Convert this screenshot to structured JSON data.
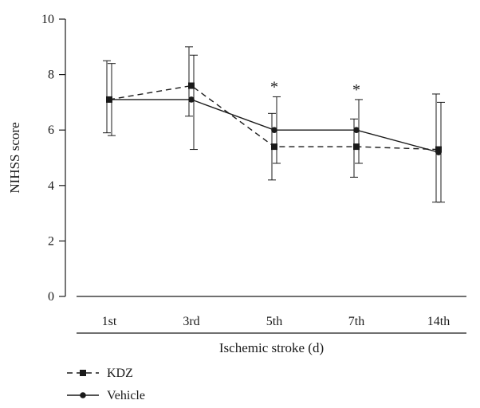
{
  "chart_data": {
    "type": "line",
    "title": "",
    "xlabel": "Ischemic stroke (d)",
    "ylabel": "NIHSS score",
    "ylim": [
      0,
      10
    ],
    "yticks": [
      0,
      2,
      4,
      6,
      8,
      10
    ],
    "categories": [
      "1st",
      "3rd",
      "5th",
      "7th",
      "14th"
    ],
    "grid": false,
    "legend_position": "bottom-left",
    "series": [
      {
        "name": "KDZ",
        "line_style": "dashed",
        "marker": "square",
        "values": [
          7.1,
          7.6,
          5.4,
          5.4,
          5.3
        ],
        "err_upper": [
          8.5,
          9.0,
          6.6,
          6.4,
          7.3
        ],
        "err_lower": [
          5.9,
          6.5,
          4.2,
          4.3,
          3.4
        ]
      },
      {
        "name": "Vehicle",
        "line_style": "solid",
        "marker": "circle",
        "values": [
          7.1,
          7.1,
          6.0,
          6.0,
          5.2
        ],
        "err_upper": [
          8.4,
          8.7,
          7.2,
          7.1,
          7.0
        ],
        "err_lower": [
          5.8,
          5.3,
          4.8,
          4.8,
          3.4
        ]
      }
    ],
    "annotations": [
      {
        "category": "5th",
        "text": "*"
      },
      {
        "category": "7th",
        "text": "*"
      }
    ]
  }
}
